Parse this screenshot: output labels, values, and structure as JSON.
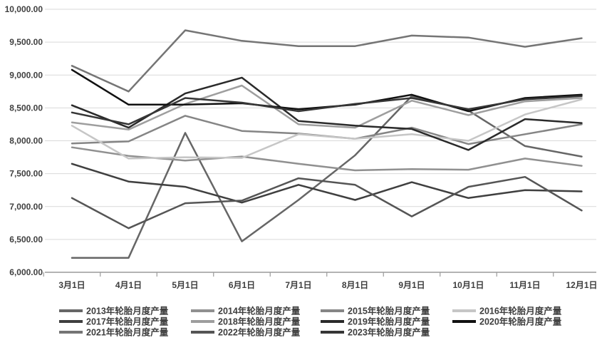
{
  "chart_data": {
    "type": "line",
    "title": "",
    "xlabel": "",
    "ylabel": "",
    "ylim": [
      6000,
      10000
    ],
    "y_tick_step": 500,
    "grid": true,
    "legend_position": "bottom",
    "y_tick_labels": [
      "10,000.00",
      "9,500.00",
      "9,000.00",
      "8,500.00",
      "8,000.00",
      "7,500.00",
      "7,000.00",
      "6,500.00",
      "6,000.00"
    ],
    "categories": [
      "3月1日",
      "4月1日",
      "5月1日",
      "6月1日",
      "7月1日",
      "8月1日",
      "9月1日",
      "10月1日",
      "11月1日",
      "12月1日"
    ],
    "series": [
      {
        "name": "2013年轮胎月度产量",
        "color": "#666666",
        "values": [
          6220,
          6220,
          8120,
          6470,
          7100,
          7780,
          8680,
          8460,
          7920,
          7760
        ]
      },
      {
        "name": "2014年轮胎月度产量",
        "color": "#909090",
        "values": [
          7900,
          7770,
          7700,
          7760,
          7650,
          7550,
          7570,
          7560,
          7730,
          7620
        ]
      },
      {
        "name": "2015年轮胎月度产量",
        "color": "#858585",
        "values": [
          7960,
          7990,
          8380,
          8150,
          8110,
          8030,
          8200,
          7950,
          8100,
          8250
        ]
      },
      {
        "name": "2016年轮胎月度产量",
        "color": "#c6c6c6",
        "values": [
          8230,
          7730,
          7750,
          7740,
          8100,
          8030,
          8100,
          8000,
          8400,
          8630
        ]
      },
      {
        "name": "2017年轮胎月度产量",
        "color": "#3f3f3f",
        "values": [
          7650,
          7380,
          7300,
          7060,
          7330,
          7100,
          7370,
          7130,
          7250,
          7230
        ]
      },
      {
        "name": "2018年轮胎月度产量",
        "color": "#9e9e9e",
        "values": [
          8280,
          8170,
          8560,
          8840,
          8250,
          8200,
          8610,
          8390,
          8600,
          8650
        ]
      },
      {
        "name": "2019年轮胎月度产量",
        "color": "#2a2a2a",
        "values": [
          8540,
          8200,
          8720,
          8960,
          8300,
          8230,
          8180,
          7860,
          8330,
          8270
        ]
      },
      {
        "name": "2020年轮胎月度产量",
        "color": "#111111",
        "values": [
          9080,
          8550,
          8550,
          8570,
          8480,
          8550,
          8700,
          8450,
          8650,
          8700
        ]
      },
      {
        "name": "2021年轮胎月度产量",
        "color": "#757575",
        "values": [
          9140,
          8750,
          9680,
          9520,
          9440,
          9440,
          9600,
          9570,
          9430,
          9560
        ]
      },
      {
        "name": "2022年轮胎月度产量",
        "color": "#555555",
        "values": [
          7130,
          6670,
          7050,
          7090,
          7430,
          7330,
          6850,
          7300,
          7450,
          6940
        ]
      },
      {
        "name": "2023年轮胎月度产量",
        "color": "#363636",
        "values": [
          8430,
          8250,
          8650,
          8580,
          8450,
          8560,
          8650,
          8480,
          8630,
          8680
        ]
      }
    ],
    "colors": {
      "grid": "#d9d9d9",
      "axis": "#9a9a9a",
      "tick_text": "#404040",
      "background": "#ffffff"
    }
  }
}
